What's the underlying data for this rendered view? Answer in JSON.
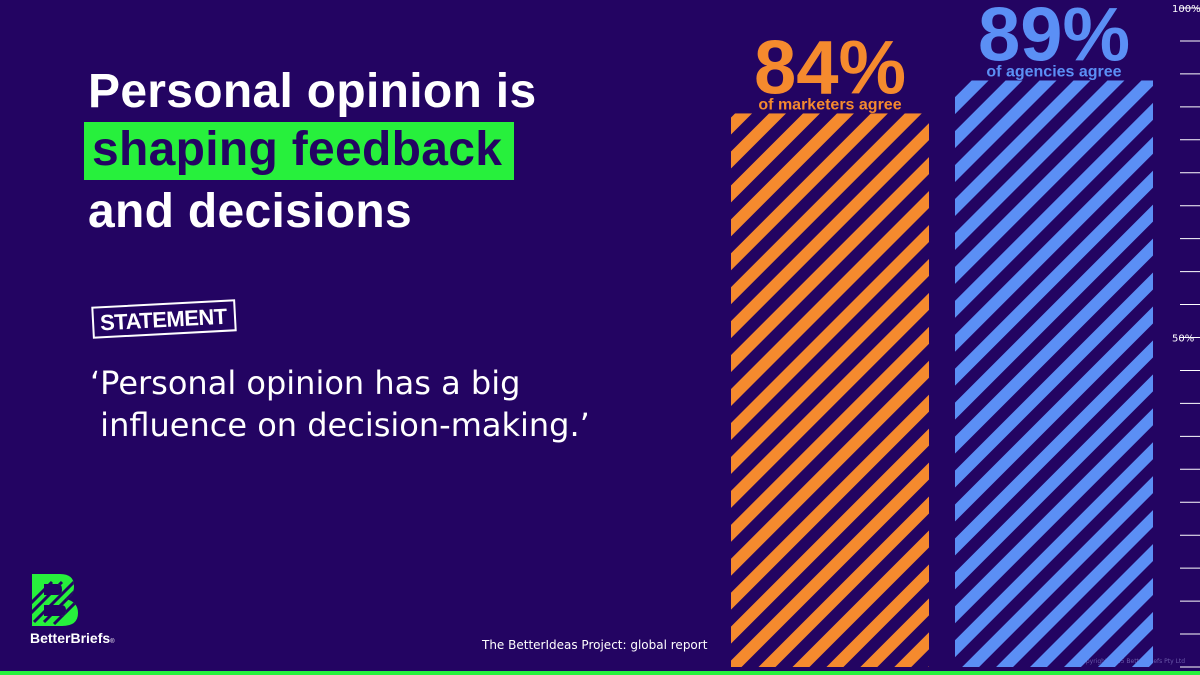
{
  "headline": {
    "line1": "Personal opinion is",
    "line2": "shaping feedback",
    "line3": "and decisions"
  },
  "stamp": "STATEMENT",
  "quote": "‘Personal opinion has a big\n influence on decision-making.’",
  "brand": {
    "name": "BetterBriefs",
    "mark": "®"
  },
  "footnote": "The BetterIdeas Project: global report",
  "copyright": "Copyright 2025 BetterBriefs Pty Ltd",
  "colors": {
    "background": "#230462",
    "accent_green": "#27f03c",
    "marketers_orange": "#f58a2e",
    "agencies_blue": "#5b8ff5"
  },
  "chart_data": {
    "type": "bar",
    "categories": [
      "marketers",
      "agencies"
    ],
    "values": [
      84,
      89
    ],
    "value_labels": [
      "84%",
      "89%"
    ],
    "bar_captions": [
      "of marketers agree",
      "of agencies agree"
    ],
    "ylim": [
      0,
      100
    ],
    "ytick_labels": [
      "100%",
      "50%"
    ],
    "ytick_values": [
      100,
      50
    ]
  }
}
